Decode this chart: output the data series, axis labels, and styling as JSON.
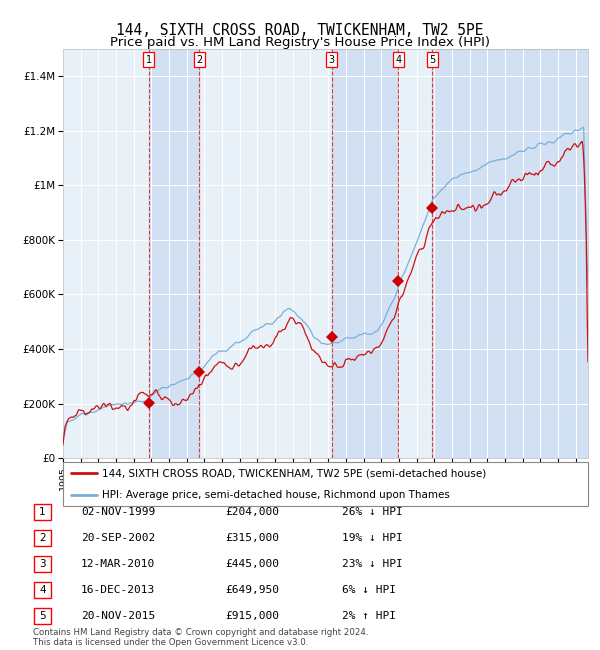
{
  "title": "144, SIXTH CROSS ROAD, TWICKENHAM, TW2 5PE",
  "subtitle": "Price paid vs. HM Land Registry's House Price Index (HPI)",
  "title_fontsize": 10.5,
  "subtitle_fontsize": 9.5,
  "ylim": [
    0,
    1500000
  ],
  "yticks": [
    0,
    200000,
    400000,
    600000,
    800000,
    1000000,
    1200000,
    1400000
  ],
  "ytick_labels": [
    "£0",
    "£200K",
    "£400K",
    "£600K",
    "£800K",
    "£1M",
    "£1.2M",
    "£1.4M"
  ],
  "background_color": "#ffffff",
  "plot_bg_color": "#e8f0f8",
  "grid_color": "#ffffff",
  "hpi_line_color": "#7ab0d8",
  "price_line_color": "#cc1111",
  "sale_marker_color": "#cc0000",
  "dashed_line_color": "#dd2222",
  "shade_color": "#c8daf0",
  "sales": [
    {
      "label": "1",
      "date_num": 1999.84,
      "price": 204000
    },
    {
      "label": "2",
      "date_num": 2002.72,
      "price": 315000
    },
    {
      "label": "3",
      "date_num": 2010.19,
      "price": 445000
    },
    {
      "label": "4",
      "date_num": 2013.96,
      "price": 649950
    },
    {
      "label": "5",
      "date_num": 2015.89,
      "price": 915000
    }
  ],
  "legend_entries": [
    "144, SIXTH CROSS ROAD, TWICKENHAM, TW2 5PE (semi-detached house)",
    "HPI: Average price, semi-detached house, Richmond upon Thames"
  ],
  "table_rows": [
    {
      "num": "1",
      "date": "02-NOV-1999",
      "price": "£204,000",
      "hpi": "26% ↓ HPI"
    },
    {
      "num": "2",
      "date": "20-SEP-2002",
      "price": "£315,000",
      "hpi": "19% ↓ HPI"
    },
    {
      "num": "3",
      "date": "12-MAR-2010",
      "price": "£445,000",
      "hpi": "23% ↓ HPI"
    },
    {
      "num": "4",
      "date": "16-DEC-2013",
      "price": "£649,950",
      "hpi": "6% ↓ HPI"
    },
    {
      "num": "5",
      "date": "20-NOV-2015",
      "price": "£915,000",
      "hpi": "2% ↑ HPI"
    }
  ],
  "footnote": "Contains HM Land Registry data © Crown copyright and database right 2024.\nThis data is licensed under the Open Government Licence v3.0.",
  "xstart": 1995.0,
  "xend": 2024.7
}
